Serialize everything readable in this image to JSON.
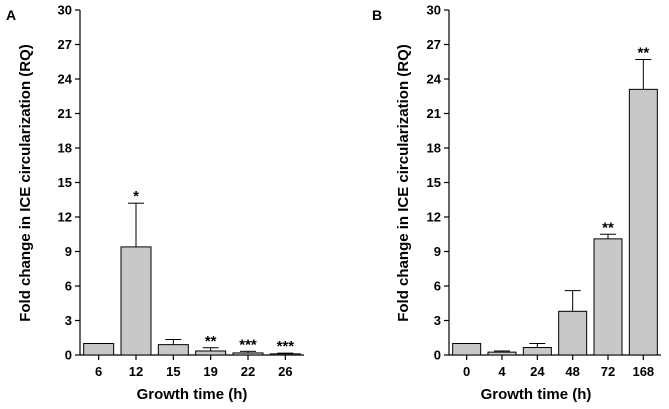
{
  "chart_data": [
    {
      "panel": "A",
      "type": "bar",
      "categories": [
        "6",
        "12",
        "15",
        "19",
        "22",
        "26"
      ],
      "values": [
        1.0,
        9.4,
        0.9,
        0.35,
        0.18,
        0.1
      ],
      "errors": [
        0.0,
        3.8,
        0.45,
        0.28,
        0.14,
        0.06
      ],
      "significance": [
        "",
        "*",
        "",
        "**",
        "***",
        "***"
      ],
      "xlabel": "Growth time (h)",
      "ylabel": "Fold change in ICE circularization (RQ)",
      "ylim": [
        0,
        30
      ],
      "yticks": [
        "0",
        "3",
        "6",
        "9",
        "12",
        "15",
        "18",
        "21",
        "24",
        "27",
        "30"
      ],
      "bar_color": "#c8c8c8"
    },
    {
      "panel": "B",
      "type": "bar",
      "categories": [
        "0",
        "4",
        "24",
        "48",
        "72",
        "168"
      ],
      "values": [
        1.0,
        0.25,
        0.65,
        3.8,
        10.1,
        23.1
      ],
      "errors": [
        0.0,
        0.1,
        0.35,
        1.8,
        0.4,
        2.6
      ],
      "significance": [
        "",
        "",
        "",
        "",
        "**",
        "**"
      ],
      "xlabel": "Growth time (h)",
      "ylabel": "Fold change in ICE circularization (RQ)",
      "ylim": [
        0,
        30
      ],
      "yticks": [
        "0",
        "3",
        "6",
        "9",
        "12",
        "15",
        "18",
        "21",
        "24",
        "27",
        "30"
      ],
      "bar_color": "#c8c8c8"
    }
  ]
}
